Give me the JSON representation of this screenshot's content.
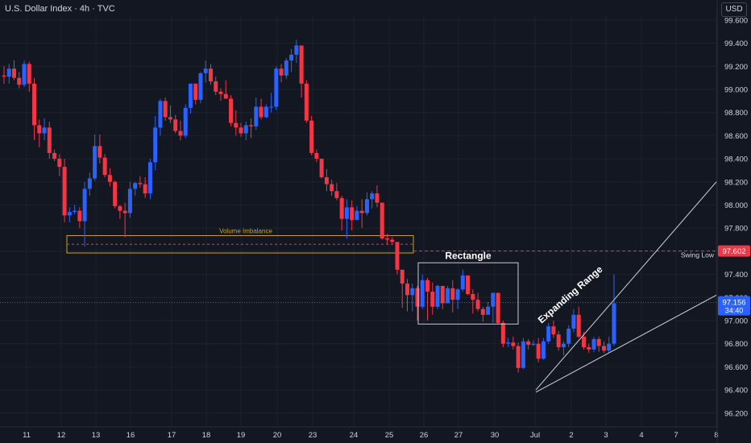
{
  "header": {
    "title": "U.S. Dollar Index · 4h · TVC",
    "currency": "USD"
  },
  "colors": {
    "bg": "#131722",
    "up": "#2962ff",
    "down": "#f23645",
    "grid": "#1e222d",
    "axis_text": "#d1d4dc",
    "volume_imbalance": "#c9a227",
    "price_tag": "#2962ff",
    "swing_tag": "#f23645",
    "line": "#d1d4dc"
  },
  "chart_data": {
    "type": "candlestick",
    "y_axis": {
      "ticks": [
        96.2,
        96.4,
        96.6,
        96.8,
        97.0,
        97.2,
        97.4,
        97.6,
        97.8,
        98.0,
        98.2,
        98.4,
        98.6,
        98.8,
        99.0,
        99.2,
        99.4,
        99.6
      ],
      "ylim": [
        96.1,
        99.7
      ]
    },
    "x_axis": {
      "ticks": [
        "11",
        "12",
        "13",
        "16",
        "17",
        "18",
        "19",
        "20",
        "23",
        "24",
        "25",
        "26",
        "27",
        "30",
        "Jul",
        "2",
        "3",
        "4",
        "7",
        "8"
      ]
    },
    "candles": [
      [
        99.12,
        99.2,
        99.05,
        99.11
      ],
      [
        99.11,
        99.22,
        99.05,
        99.18
      ],
      [
        99.18,
        99.25,
        99.08,
        99.1
      ],
      [
        99.1,
        99.15,
        99.01,
        99.04
      ],
      [
        99.04,
        99.25,
        99.02,
        99.22
      ],
      [
        99.22,
        99.24,
        98.98,
        99.05
      ],
      [
        99.05,
        99.1,
        98.56,
        98.69
      ],
      [
        98.69,
        98.74,
        98.5,
        98.62
      ],
      [
        98.62,
        98.75,
        98.56,
        98.67
      ],
      [
        98.67,
        98.72,
        98.4,
        98.45
      ],
      [
        98.45,
        98.48,
        98.38,
        98.4
      ],
      [
        98.4,
        98.44,
        98.25,
        98.33
      ],
      [
        98.33,
        98.4,
        97.85,
        97.91
      ],
      [
        97.91,
        97.98,
        97.85,
        97.94
      ],
      [
        97.94,
        98.0,
        97.92,
        97.95
      ],
      [
        97.95,
        97.98,
        97.8,
        97.86
      ],
      [
        97.86,
        98.2,
        97.64,
        98.14
      ],
      [
        98.14,
        98.28,
        98.08,
        98.23
      ],
      [
        98.23,
        98.61,
        98.21,
        98.51
      ],
      [
        98.51,
        98.61,
        98.36,
        98.41
      ],
      [
        98.41,
        98.44,
        98.24,
        98.26
      ],
      [
        98.26,
        98.32,
        98.16,
        98.2
      ],
      [
        98.2,
        98.21,
        97.97,
        97.99
      ],
      [
        97.99,
        98.0,
        97.88,
        97.95
      ],
      [
        97.95,
        98.02,
        97.72,
        97.93
      ],
      [
        97.93,
        98.2,
        97.89,
        98.14
      ],
      [
        98.14,
        98.2,
        98.08,
        98.19
      ],
      [
        98.19,
        98.25,
        98.15,
        98.18
      ],
      [
        98.18,
        98.24,
        98.06,
        98.1
      ],
      [
        98.1,
        98.4,
        98.05,
        98.37
      ],
      [
        98.37,
        98.77,
        98.3,
        98.67
      ],
      [
        98.67,
        98.92,
        98.6,
        98.9
      ],
      [
        98.9,
        98.93,
        98.73,
        98.76
      ],
      [
        98.76,
        98.86,
        98.71,
        98.74
      ],
      [
        98.74,
        98.78,
        98.62,
        98.64
      ],
      [
        98.64,
        98.73,
        98.56,
        98.6
      ],
      [
        98.6,
        98.87,
        98.58,
        98.84
      ],
      [
        98.84,
        99.05,
        98.79,
        99.05
      ],
      [
        99.05,
        99.05,
        98.87,
        98.91
      ],
      [
        98.91,
        99.15,
        98.88,
        99.14
      ],
      [
        99.14,
        99.25,
        99.06,
        99.18
      ],
      [
        99.18,
        99.22,
        99.04,
        99.07
      ],
      [
        99.07,
        99.11,
        98.95,
        98.98
      ],
      [
        98.98,
        99.01,
        98.9,
        98.96
      ],
      [
        98.96,
        99.08,
        98.95,
        98.92
      ],
      [
        98.92,
        98.95,
        98.68,
        98.71
      ],
      [
        98.71,
        98.82,
        98.6,
        98.67
      ],
      [
        98.67,
        98.71,
        98.59,
        98.62
      ],
      [
        98.62,
        98.72,
        98.56,
        98.69
      ],
      [
        98.69,
        98.75,
        98.58,
        98.68
      ],
      [
        98.68,
        98.93,
        98.65,
        98.85
      ],
      [
        98.85,
        98.92,
        98.74,
        98.76
      ],
      [
        98.76,
        98.87,
        98.75,
        98.85
      ],
      [
        98.85,
        98.97,
        98.8,
        98.85
      ],
      [
        98.85,
        99.2,
        98.82,
        99.18
      ],
      [
        99.18,
        99.22,
        99.06,
        99.12
      ],
      [
        99.12,
        99.27,
        99.09,
        99.25
      ],
      [
        99.25,
        99.35,
        99.15,
        99.3
      ],
      [
        99.3,
        99.43,
        99.23,
        99.38
      ],
      [
        99.38,
        99.38,
        98.93,
        99.05
      ],
      [
        99.05,
        99.08,
        98.71,
        98.73
      ],
      [
        98.73,
        98.77,
        98.43,
        98.45
      ],
      [
        98.45,
        98.48,
        98.37,
        98.4
      ],
      [
        98.4,
        98.4,
        98.23,
        98.24
      ],
      [
        98.24,
        98.31,
        98.12,
        98.18
      ],
      [
        98.18,
        98.22,
        98.08,
        98.12
      ],
      [
        98.12,
        98.19,
        98.04,
        98.06
      ],
      [
        98.06,
        98.08,
        97.78,
        97.88
      ],
      [
        97.88,
        98.05,
        97.71,
        97.98
      ],
      [
        97.98,
        98.04,
        97.78,
        97.87
      ],
      [
        97.87,
        97.99,
        97.87,
        97.95
      ],
      [
        97.95,
        98.05,
        97.8,
        97.93
      ],
      [
        97.93,
        98.11,
        97.91,
        98.05
      ],
      [
        98.05,
        98.12,
        97.97,
        98.1
      ],
      [
        98.1,
        98.17,
        97.98,
        98.02
      ],
      [
        98.02,
        98.02,
        97.7,
        97.71
      ],
      [
        97.71,
        97.75,
        97.66,
        97.7
      ],
      [
        97.7,
        97.72,
        97.66,
        97.68
      ],
      [
        97.68,
        97.68,
        97.4,
        97.44
      ],
      [
        97.44,
        97.44,
        97.11,
        97.32
      ],
      [
        97.32,
        97.36,
        97.08,
        97.22
      ],
      [
        97.22,
        97.32,
        97.08,
        97.28
      ],
      [
        97.28,
        97.3,
        97.0,
        97.12
      ],
      [
        97.12,
        97.4,
        97.1,
        97.35
      ],
      [
        97.35,
        97.37,
        97.0,
        97.25
      ],
      [
        97.25,
        97.33,
        97.05,
        97.12
      ],
      [
        97.12,
        97.31,
        97.1,
        97.3
      ],
      [
        97.3,
        97.3,
        97.1,
        97.15
      ],
      [
        97.15,
        97.3,
        97.15,
        97.28
      ],
      [
        97.28,
        97.35,
        97.07,
        97.18
      ],
      [
        97.18,
        97.28,
        97.1,
        97.27
      ],
      [
        97.27,
        97.44,
        97.25,
        97.39
      ],
      [
        97.39,
        97.39,
        97.22,
        97.23
      ],
      [
        97.23,
        97.27,
        97.06,
        97.18
      ],
      [
        97.18,
        97.24,
        97.08,
        97.1
      ],
      [
        97.1,
        97.12,
        96.99,
        97.05
      ],
      [
        97.05,
        97.16,
        97.05,
        97.12
      ],
      [
        97.12,
        97.22,
        96.98,
        97.24
      ],
      [
        97.24,
        97.24,
        96.97,
        96.98
      ],
      [
        96.98,
        97.0,
        96.77,
        96.8
      ],
      [
        96.8,
        96.85,
        96.77,
        96.81
      ],
      [
        96.81,
        96.86,
        96.75,
        96.78
      ],
      [
        96.78,
        96.81,
        96.55,
        96.59
      ],
      [
        96.59,
        96.85,
        96.58,
        96.82
      ],
      [
        96.82,
        96.84,
        96.75,
        96.79
      ],
      [
        96.79,
        96.83,
        96.78,
        96.8
      ],
      [
        96.8,
        96.85,
        96.64,
        96.67
      ],
      [
        96.67,
        96.85,
        96.66,
        96.82
      ],
      [
        96.82,
        96.98,
        96.8,
        96.95
      ],
      [
        96.95,
        97.0,
        96.85,
        96.88
      ],
      [
        96.88,
        96.91,
        96.74,
        96.77
      ],
      [
        96.77,
        96.82,
        96.7,
        96.8
      ],
      [
        96.8,
        96.96,
        96.77,
        96.93
      ],
      [
        96.93,
        97.1,
        96.9,
        97.05
      ],
      [
        97.05,
        97.12,
        96.85,
        96.86
      ],
      [
        96.86,
        96.9,
        96.75,
        96.77
      ],
      [
        96.77,
        96.8,
        96.72,
        96.75
      ],
      [
        96.75,
        96.86,
        96.73,
        96.84
      ],
      [
        96.84,
        96.86,
        96.73,
        96.78
      ],
      [
        96.78,
        96.82,
        96.72,
        96.74
      ],
      [
        96.74,
        96.86,
        96.72,
        96.8
      ],
      [
        96.8,
        97.4,
        96.78,
        97.15
      ]
    ],
    "current_price": "97.156",
    "countdown": "34:40",
    "swing_low_price": "97.602",
    "annotations": {
      "volume_imbalance": "Volume Imbalance",
      "rectangle": "Rectangle",
      "expanding_range": "Expanding Range",
      "swing_low": "Swing Low"
    }
  }
}
